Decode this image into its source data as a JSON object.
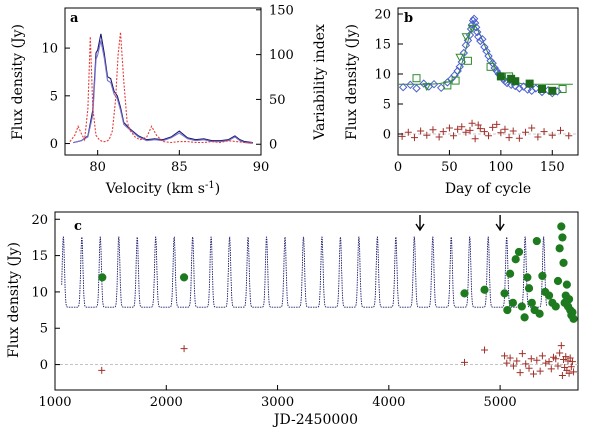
{
  "chart_data": [
    {
      "panel": "a",
      "type": "line",
      "xlabel": "Velocity (km s⁻¹)",
      "ylabel": "Flux density (Jy)",
      "ylabel_right": "Variability index",
      "xlim": [
        78,
        90
      ],
      "ylim": [
        -1.2,
        14.2
      ],
      "ylim_right": [
        -12,
        152
      ],
      "x_ticks": [
        "80",
        "85",
        "90"
      ],
      "y_ticks": [
        "0",
        "5",
        "10"
      ],
      "y_ticks_right": [
        "0",
        "50",
        "100",
        "150"
      ],
      "series": [
        {
          "name": "flux (dark)",
          "color": "#1a1a6e",
          "x": [
            78.5,
            79.0,
            79.4,
            79.7,
            79.9,
            80.0,
            80.2,
            80.4,
            80.6,
            80.8,
            81.0,
            81.2,
            81.4,
            81.6,
            82.0,
            82.5,
            83.0,
            83.5,
            84.0,
            84.5,
            85.0,
            85.5,
            86.0,
            86.5,
            87.0,
            87.5,
            88.0,
            88.4,
            88.7,
            89.0,
            89.5
          ],
          "values": [
            0.1,
            0.3,
            0.8,
            3.5,
            9.5,
            9.8,
            11.5,
            9.5,
            7.0,
            6.8,
            5.5,
            5.0,
            3.8,
            2.2,
            1.5,
            0.8,
            0.4,
            0.5,
            0.4,
            0.7,
            1.3,
            0.6,
            0.4,
            0.5,
            0.3,
            0.3,
            0.4,
            0.8,
            0.4,
            0.2,
            0.1
          ]
        },
        {
          "name": "flux (light)",
          "color": "#7a73cc",
          "x": [
            78.5,
            79.0,
            79.4,
            79.7,
            79.9,
            80.0,
            80.2,
            80.4,
            80.6,
            80.8,
            81.0,
            81.2,
            81.4,
            81.6,
            82.0,
            82.5,
            83.0,
            83.5,
            84.0,
            84.5,
            85.0,
            85.5,
            86.0,
            86.5,
            87.0,
            87.5,
            88.0,
            88.4,
            88.7,
            89.0,
            89.5
          ],
          "values": [
            0.1,
            0.3,
            0.7,
            3.0,
            8.8,
            9.3,
            10.8,
            9.0,
            6.6,
            6.4,
            5.2,
            4.7,
            3.5,
            2.0,
            1.4,
            0.7,
            0.3,
            0.4,
            0.3,
            0.6,
            1.1,
            0.5,
            0.3,
            0.4,
            0.2,
            0.2,
            0.3,
            0.7,
            0.3,
            0.1,
            0.0
          ]
        },
        {
          "name": "variability index",
          "color": "#e83a3a",
          "dashed": true,
          "axis": "right",
          "x": [
            78.3,
            78.6,
            78.8,
            79.0,
            79.2,
            79.4,
            79.55,
            79.7,
            79.9,
            80.1,
            80.3,
            80.5,
            80.7,
            80.9,
            81.1,
            81.25,
            81.4,
            81.6,
            81.8,
            82.0,
            82.3,
            82.6,
            83.0,
            83.3,
            83.6,
            84.0,
            84.5,
            85.0,
            85.5,
            86.0,
            86.5,
            87.0,
            87.5,
            88.0,
            88.5,
            89.0,
            89.5
          ],
          "values": [
            3,
            10,
            20,
            12,
            5,
            40,
            120,
            40,
            10,
            5,
            3,
            3,
            5,
            15,
            50,
            100,
            125,
            70,
            25,
            15,
            8,
            5,
            8,
            20,
            10,
            3,
            2,
            3,
            3,
            2,
            2,
            3,
            2,
            4,
            3,
            2,
            2
          ]
        }
      ]
    },
    {
      "panel": "b",
      "type": "scatter",
      "xlabel": "Day of cycle",
      "ylabel": "Flux density (Jy)",
      "xlim": [
        0,
        175
      ],
      "ylim": [
        -3.5,
        21
      ],
      "x_ticks": [
        "0",
        "50",
        "100",
        "150"
      ],
      "y_ticks": [
        "0",
        "5",
        "10",
        "15",
        "20"
      ],
      "series": [
        {
          "name": "model curve",
          "type": "line",
          "color": "#2e8b2e",
          "x": [
            0,
            10,
            20,
            30,
            40,
            50,
            55,
            60,
            65,
            70,
            73,
            76,
            80,
            85,
            90,
            95,
            100,
            105,
            110,
            115,
            120,
            130,
            140,
            150,
            160,
            170
          ],
          "values": [
            8.3,
            8.3,
            8.3,
            8.3,
            8.4,
            8.7,
            9.2,
            10.5,
            13.5,
            16.8,
            18.0,
            17.8,
            16.5,
            14.5,
            12.5,
            11.0,
            10.0,
            9.3,
            8.9,
            8.6,
            8.4,
            8.3,
            8.3,
            8.3,
            8.3,
            8.3
          ]
        },
        {
          "name": "diamonds",
          "marker": "diamond",
          "color": "#4a5fd0",
          "x": [
            5,
            12,
            18,
            25,
            30,
            35,
            42,
            48,
            52,
            55,
            58,
            60,
            62,
            64,
            66,
            68,
            70,
            71,
            72,
            73,
            74,
            75,
            76,
            77,
            78,
            80,
            82,
            84,
            86,
            88,
            90,
            92,
            94,
            96,
            98,
            100,
            102,
            104,
            106,
            110,
            114,
            118,
            122,
            126,
            130,
            134,
            140,
            146,
            150,
            155
          ],
          "values": [
            7.8,
            8.2,
            7.6,
            8.4,
            7.9,
            8.3,
            7.7,
            8.6,
            9.2,
            9.8,
            10.5,
            11.2,
            12.0,
            13.5,
            14.8,
            15.6,
            16.5,
            17.5,
            18.2,
            18.9,
            19.2,
            18.5,
            17.8,
            17.0,
            16.2,
            15.5,
            15.8,
            14.5,
            13.8,
            13.0,
            12.2,
            11.8,
            11.0,
            10.5,
            10.0,
            9.6,
            9.2,
            8.8,
            8.5,
            8.2,
            8.0,
            7.6,
            7.9,
            7.4,
            7.2,
            7.6,
            7.0,
            7.3,
            6.8,
            7.1
          ]
        },
        {
          "name": "open squares",
          "marker": "square-open",
          "color": "#2e8b2e",
          "x": [
            18,
            48,
            56,
            68,
            90,
            108,
            160
          ],
          "values": [
            9.3,
            8.1,
            8.9,
            12.2,
            11.2,
            9.6,
            7.5
          ]
        },
        {
          "name": "open triangles",
          "marker": "triangle-open",
          "color": "#2e8b2e",
          "x": [
            28,
            60,
            66,
            72
          ],
          "values": [
            7.9,
            12.8,
            16.2,
            17.6
          ]
        },
        {
          "name": "filled squares",
          "marker": "square",
          "color": "#1e6b1e",
          "x": [
            100,
            110,
            114,
            128,
            140,
            150
          ],
          "values": [
            9.6,
            9.2,
            8.8,
            8.4,
            7.5,
            7.2
          ]
        },
        {
          "name": "residuals",
          "marker": "plus",
          "color": "#a0302a",
          "x": [
            4,
            10,
            16,
            22,
            28,
            34,
            40,
            44,
            50,
            54,
            58,
            62,
            66,
            70,
            72,
            75,
            78,
            80,
            84,
            88,
            92,
            96,
            100,
            104,
            108,
            112,
            118,
            124,
            130,
            136,
            142,
            150,
            158,
            166
          ],
          "values": [
            -0.4,
            0.3,
            -0.6,
            0.5,
            -0.2,
            0.7,
            -0.5,
            0.4,
            1.0,
            -0.3,
            0.8,
            1.2,
            0.3,
            0.6,
            1.8,
            -0.8,
            1.5,
            0.9,
            0.4,
            -0.3,
            1.1,
            1.6,
            0.2,
            0.8,
            -0.6,
            0.5,
            -0.7,
            0.3,
            1.0,
            -0.5,
            0.4,
            -0.2,
            0.6,
            -0.3
          ]
        }
      ]
    },
    {
      "panel": "c",
      "type": "scatter",
      "xlabel": "JD-2450000",
      "ylabel": "Flux density (Jy)",
      "xlim": [
        1000,
        5700
      ],
      "ylim": [
        -3.5,
        21
      ],
      "x_ticks": [
        "1000",
        "2000",
        "3000",
        "4000",
        "5000"
      ],
      "y_ticks": [
        "0",
        "5",
        "10",
        "15",
        "20"
      ],
      "model": {
        "name": "periodic model",
        "color": "#1a1a6e",
        "period": 166,
        "first_peak": 1075,
        "baseline": 7.9,
        "peak": 17.6
      },
      "arrows_at": [
        4280,
        5000
      ],
      "series": [
        {
          "name": "observations",
          "marker": "circle",
          "color": "#1e7a1e",
          "x": [
            1425,
            2160,
            4680,
            4860,
            5040,
            5065,
            5090,
            5115,
            5140,
            5170,
            5195,
            5220,
            5245,
            5260,
            5285,
            5310,
            5330,
            5355,
            5380,
            5405,
            5440,
            5470,
            5500,
            5520,
            5535,
            5550,
            5560,
            5570,
            5580,
            5590,
            5600,
            5610,
            5620,
            5630,
            5640,
            5650,
            5660
          ],
          "values": [
            12.0,
            12.0,
            9.8,
            10.3,
            9.8,
            7.5,
            12.5,
            8.5,
            14.5,
            15.5,
            8.0,
            6.5,
            12.0,
            10.5,
            8.5,
            7.5,
            17.0,
            7.0,
            12.2,
            10.0,
            9.5,
            8.5,
            8.0,
            11.5,
            16.0,
            19.0,
            17.5,
            14.0,
            8.5,
            9.5,
            11.0,
            8.0,
            9.0,
            7.5,
            6.8,
            7.2,
            6.3
          ]
        },
        {
          "name": "residuals",
          "marker": "plus",
          "color": "#a0302a",
          "x": [
            1420,
            2160,
            4680,
            4860,
            5040,
            5060,
            5090,
            5120,
            5150,
            5180,
            5200,
            5230,
            5260,
            5280,
            5300,
            5330,
            5360,
            5380,
            5410,
            5440,
            5460,
            5480,
            5500,
            5520,
            5535,
            5550,
            5560,
            5570,
            5580,
            5590,
            5600,
            5610,
            5620,
            5630,
            5640,
            5650,
            5660
          ],
          "values": [
            -0.8,
            2.2,
            0.3,
            2.0,
            1.2,
            0.2,
            0.9,
            -0.2,
            0.5,
            -1.1,
            1.5,
            0.1,
            -0.5,
            0.8,
            -1.3,
            0.6,
            -0.9,
            1.2,
            0.2,
            0.4,
            -0.6,
            1.0,
            0.8,
            -0.2,
            1.6,
            2.6,
            -1.5,
            0.7,
            -0.4,
            1.1,
            -0.8,
            0.5,
            -1.2,
            0.9,
            -0.3,
            0.4,
            -1.0
          ]
        }
      ]
    }
  ]
}
